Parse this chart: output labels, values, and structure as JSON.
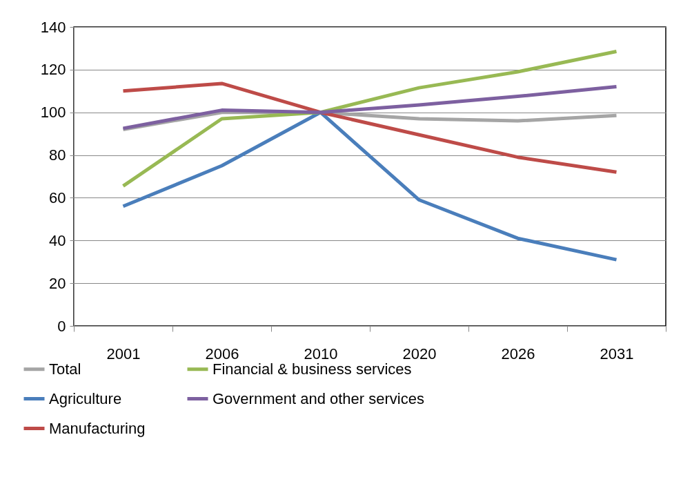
{
  "chart_data": {
    "type": "line",
    "categories": [
      "2001",
      "2006",
      "2010",
      "2020",
      "2026",
      "2031"
    ],
    "series": [
      {
        "name": "Total",
        "color": "#a5a5a5",
        "values": [
          92,
          100,
          100,
          97,
          96,
          98.5
        ]
      },
      {
        "name": "Agriculture",
        "color": "#4a7ebb",
        "values": [
          56,
          75,
          100,
          59,
          41,
          31
        ]
      },
      {
        "name": "Manufacturing",
        "color": "#be4b48",
        "values": [
          110,
          113.5,
          100,
          89.5,
          79,
          72
        ]
      },
      {
        "name": "Financial & business services",
        "color": "#98b954",
        "values": [
          65.5,
          97,
          100,
          111.5,
          119,
          128.5
        ]
      },
      {
        "name": "Government and other services",
        "color": "#7d60a0",
        "values": [
          92.5,
          101,
          100,
          103.5,
          107.5,
          112
        ]
      }
    ],
    "ylim": [
      0,
      140
    ],
    "yticks": [
      0,
      20,
      40,
      60,
      80,
      100,
      120,
      140
    ],
    "grid": "y",
    "legend": "bottom",
    "marker": "none",
    "line_style": "solid"
  }
}
